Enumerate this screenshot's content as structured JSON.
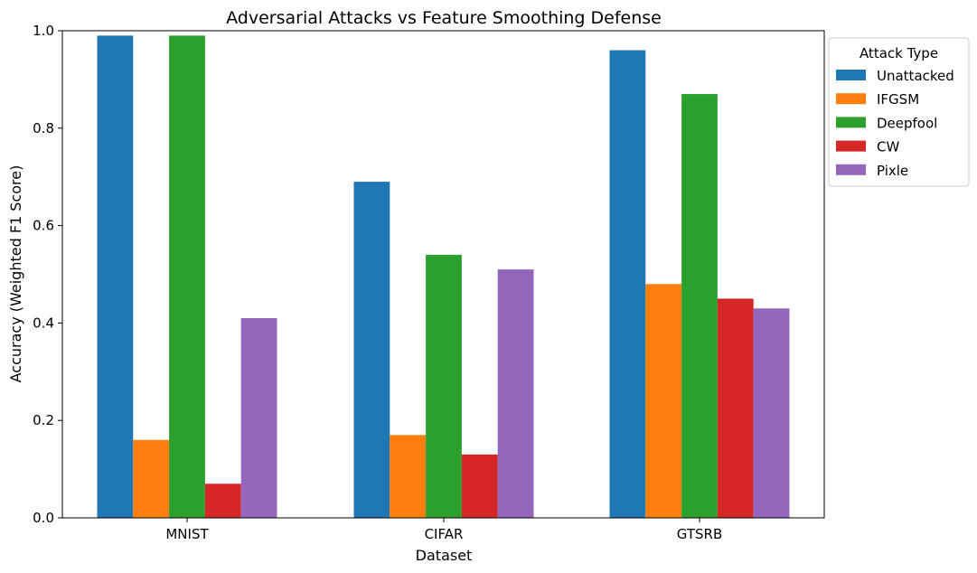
{
  "chart_data": {
    "type": "bar",
    "title": "Adversarial Attacks vs Feature Smoothing Defense",
    "xlabel": "Dataset",
    "ylabel": "Accuracy (Weighted F1 Score)",
    "categories": [
      "MNIST",
      "CIFAR",
      "GTSRB"
    ],
    "ylim": [
      0,
      1.0
    ],
    "yticks": [
      "0.0",
      "0.2",
      "0.4",
      "0.6",
      "0.8",
      "1.0"
    ],
    "grid": false,
    "legend": {
      "title": "Attack Type",
      "placement": "outside-top-right"
    },
    "series": [
      {
        "name": "Unattacked",
        "color": "#1f77b4",
        "values": [
          0.99,
          0.69,
          0.96
        ]
      },
      {
        "name": "IFGSM",
        "color": "#ff7f0e",
        "values": [
          0.16,
          0.17,
          0.48
        ]
      },
      {
        "name": "Deepfool",
        "color": "#2ca02c",
        "values": [
          0.99,
          0.54,
          0.87
        ]
      },
      {
        "name": "CW",
        "color": "#d62728",
        "values": [
          0.07,
          0.13,
          0.45
        ]
      },
      {
        "name": "Pixle",
        "color": "#9467bd",
        "values": [
          0.41,
          0.51,
          0.43
        ]
      }
    ]
  }
}
